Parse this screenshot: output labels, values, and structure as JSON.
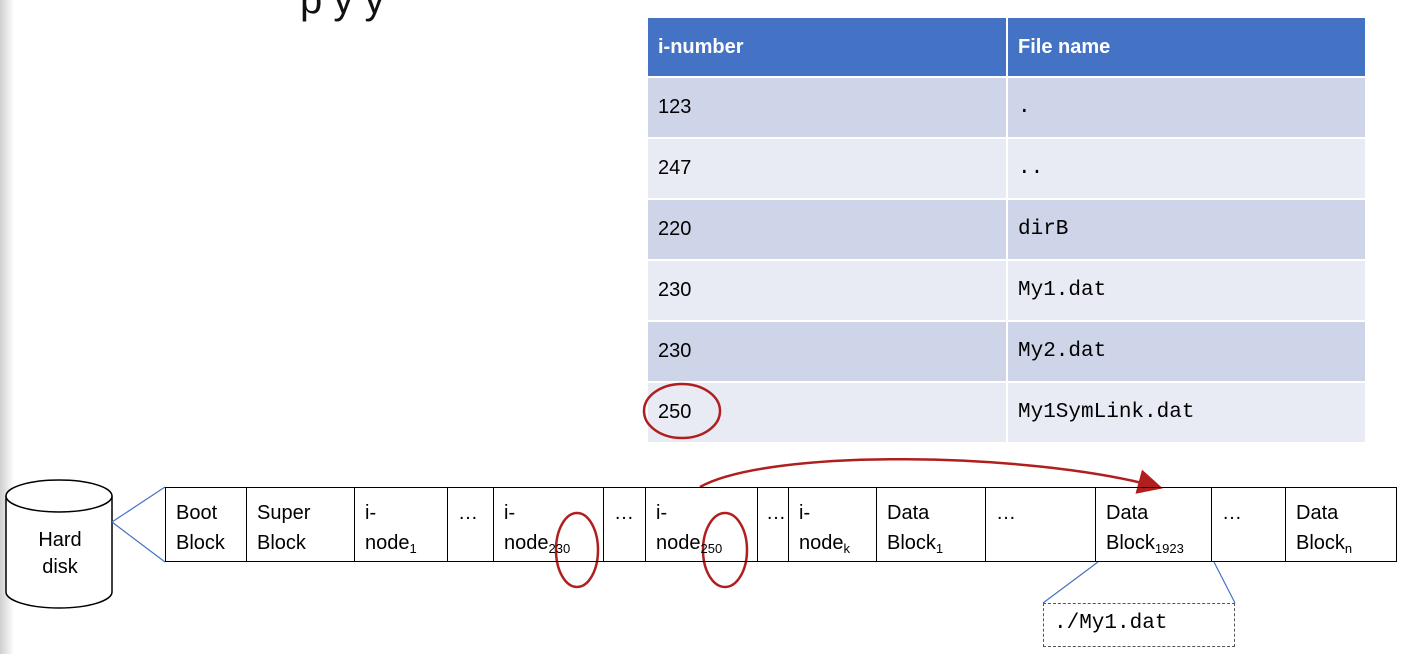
{
  "title_fragment": "p             y          y",
  "directory_table": {
    "headers": [
      "i-number",
      "File name"
    ],
    "rows": [
      {
        "inumber": "123",
        "filename": "."
      },
      {
        "inumber": "247",
        "filename": ".."
      },
      {
        "inumber": "220",
        "filename": "dirB"
      },
      {
        "inumber": "230",
        "filename": "My1.dat"
      },
      {
        "inumber": "230",
        "filename": "My2.dat"
      },
      {
        "inumber": "250",
        "filename": "My1SymLink.dat"
      }
    ]
  },
  "hard_disk": {
    "line1": "Hard",
    "line2": "disk"
  },
  "blocks": [
    {
      "l1": "Boot",
      "l2": "Block",
      "sub": ""
    },
    {
      "l1": "Super",
      "l2": "Block",
      "sub": ""
    },
    {
      "l1": "i-",
      "l2": "node",
      "sub": "1"
    },
    {
      "l1": "…",
      "l2": "",
      "sub": ""
    },
    {
      "l1": "i-",
      "l2": "node",
      "sub": "230"
    },
    {
      "l1": "…",
      "l2": "",
      "sub": ""
    },
    {
      "l1": "i-",
      "l2": "node",
      "sub": "250"
    },
    {
      "l1": "…",
      "l2": "",
      "sub": ""
    },
    {
      "l1": "i-",
      "l2": "node",
      "sub": "k"
    },
    {
      "l1": "Data",
      "l2": "Block",
      "sub": "1"
    },
    {
      "l1": "…",
      "l2": "",
      "sub": ""
    },
    {
      "l1": "Data",
      "l2": "Block",
      "sub": "1923"
    },
    {
      "l1": "…",
      "l2": "",
      "sub": ""
    },
    {
      "l1": "Data",
      "l2": "Block",
      "sub": "n"
    }
  ],
  "symlink_content": "./My1.dat",
  "colors": {
    "header_blue": "#4472c4",
    "row_dark": "#cfd5e8",
    "row_light": "#e8ebf4",
    "highlight_red": "#b01e1e",
    "callout_line": "#4472c4"
  }
}
